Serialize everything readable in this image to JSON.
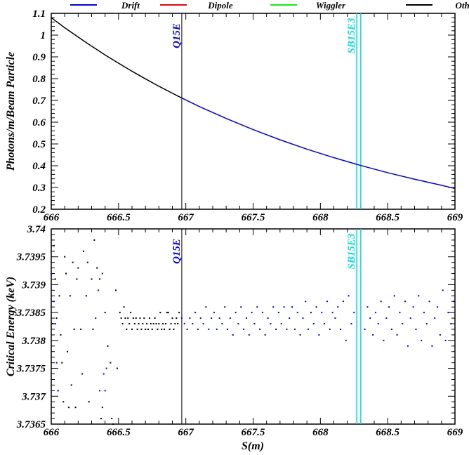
{
  "legend": [
    {
      "label": "Drift",
      "color": "#0000ff"
    },
    {
      "label": "Dipole",
      "color": "#ff0000"
    },
    {
      "label": "Wiggler",
      "color": "#00ff00"
    },
    {
      "label": "Other",
      "color": "#000000"
    }
  ],
  "chart_data": [
    {
      "type": "line",
      "title": "",
      "xlabel": "",
      "ylabel": "Photons/m/Beam Particle",
      "xlim": [
        666,
        669
      ],
      "ylim": [
        0.2,
        1.1
      ],
      "xticks": [
        "666",
        "666.5",
        "667",
        "667.5",
        "668",
        "668.5",
        "669"
      ],
      "yticks": [
        "0.2",
        "0.3",
        "0.4",
        "0.5",
        "0.6",
        "0.7",
        "0.8",
        "0.9",
        "1",
        "1.1"
      ],
      "markers": [
        {
          "label": "Q15E",
          "s": 666.97,
          "color": "#0000ff"
        },
        {
          "label": "SB15E3",
          "s": 668.27,
          "color": "#00e5e5"
        },
        {
          "label": "SB15E3",
          "s": 668.3,
          "color": "#00e5e5"
        }
      ],
      "series": [
        {
          "name": "Other",
          "color": "#000000",
          "x": [
            666.0,
            666.1,
            666.2,
            666.3,
            666.4,
            666.5,
            666.6,
            666.7,
            666.8,
            666.9,
            666.97
          ],
          "y": [
            1.08,
            1.034,
            0.991,
            0.949,
            0.909,
            0.871,
            0.834,
            0.799,
            0.765,
            0.733,
            0.711
          ]
        },
        {
          "name": "Drift",
          "color": "#0000ff",
          "x": [
            666.97,
            667.1,
            667.3,
            667.5,
            667.7,
            667.9,
            668.1,
            668.3,
            668.5,
            668.7,
            668.9,
            669.0
          ],
          "y": [
            0.711,
            0.672,
            0.617,
            0.566,
            0.519,
            0.476,
            0.437,
            0.401,
            0.368,
            0.338,
            0.31,
            0.295
          ]
        }
      ]
    },
    {
      "type": "scatter",
      "title": "",
      "xlabel": "S(m)",
      "ylabel": "Critical Energy (keV)",
      "xlim": [
        666,
        669
      ],
      "ylim": [
        3.7365,
        3.74
      ],
      "xticks": [
        "666",
        "666.5",
        "667",
        "667.5",
        "668",
        "668.5",
        "669"
      ],
      "yticks": [
        "3.7365",
        "3.737",
        "3.7375",
        "3.738",
        "3.7385",
        "3.739",
        "3.7395",
        "3.74"
      ],
      "markers": [
        {
          "label": "Q15E",
          "s": 666.97,
          "color": "#0000ff"
        },
        {
          "label": "SB15E3",
          "s": 668.27,
          "color": "#00e5e5"
        },
        {
          "label": "SB15E3",
          "s": 668.3,
          "color": "#00e5e5"
        }
      ],
      "series": [
        {
          "name": "Other",
          "color": "#000000",
          "points": [
            [
              666.01,
              3.7383
            ],
            [
              666.02,
              3.7397
            ],
            [
              666.03,
              3.7391
            ],
            [
              666.04,
              3.7384
            ],
            [
              666.05,
              3.7371
            ],
            [
              666.06,
              3.7388
            ],
            [
              666.07,
              3.7381
            ],
            [
              666.08,
              3.7376
            ],
            [
              666.09,
              3.7369
            ],
            [
              666.1,
              3.7395
            ],
            [
              666.11,
              3.7392
            ],
            [
              666.12,
              3.7378
            ],
            [
              666.13,
              3.7368
            ],
            [
              666.14,
              3.7388
            ],
            [
              666.15,
              3.7372
            ],
            [
              666.16,
              3.7394
            ],
            [
              666.17,
              3.7382
            ],
            [
              666.18,
              3.7368
            ],
            [
              666.19,
              3.7391
            ],
            [
              666.2,
              3.7393
            ],
            [
              666.22,
              3.7382
            ],
            [
              666.23,
              3.7374
            ],
            [
              666.24,
              3.7396
            ],
            [
              666.26,
              3.7388
            ],
            [
              666.27,
              3.7394
            ],
            [
              666.28,
              3.7369
            ],
            [
              666.3,
              3.7391
            ],
            [
              666.31,
              3.7382
            ],
            [
              666.32,
              3.7398
            ],
            [
              666.34,
              3.7393
            ],
            [
              666.36,
              3.7391
            ],
            [
              666.37,
              3.7366
            ],
            [
              666.38,
              3.7368
            ],
            [
              666.4,
              3.7385
            ],
            [
              666.42,
              3.7379
            ],
            [
              666.44,
              3.7376
            ],
            [
              666.45,
              3.7366
            ],
            [
              666.46,
              3.7365
            ],
            [
              666.48,
              3.7389
            ],
            [
              666.49,
              3.7375
            ],
            [
              666.51,
              3.7385
            ],
            [
              666.52,
              3.7384
            ],
            [
              666.53,
              3.7383
            ],
            [
              666.54,
              3.7386
            ],
            [
              666.55,
              3.7384
            ],
            [
              666.56,
              3.7382
            ],
            [
              666.57,
              3.7384
            ],
            [
              666.58,
              3.7383
            ],
            [
              666.59,
              3.7385
            ],
            [
              666.6,
              3.7382
            ],
            [
              666.61,
              3.7384
            ],
            [
              666.62,
              3.7383
            ],
            [
              666.63,
              3.7384
            ],
            [
              666.64,
              3.7382
            ],
            [
              666.65,
              3.7383
            ],
            [
              666.66,
              3.7384
            ],
            [
              666.67,
              3.7382
            ],
            [
              666.68,
              3.7383
            ],
            [
              666.69,
              3.7384
            ],
            [
              666.7,
              3.7382
            ],
            [
              666.71,
              3.7383
            ],
            [
              666.72,
              3.7382
            ],
            [
              666.73,
              3.7384
            ],
            [
              666.74,
              3.7383
            ],
            [
              666.75,
              3.7382
            ],
            [
              666.76,
              3.7383
            ],
            [
              666.77,
              3.7384
            ],
            [
              666.78,
              3.7383
            ],
            [
              666.79,
              3.7382
            ],
            [
              666.8,
              3.7383
            ],
            [
              666.81,
              3.7385
            ],
            [
              666.82,
              3.7382
            ],
            [
              666.83,
              3.7383
            ],
            [
              666.84,
              3.7382
            ],
            [
              666.85,
              3.7383
            ],
            [
              666.86,
              3.7385
            ],
            [
              666.87,
              3.7385
            ],
            [
              666.88,
              3.7382
            ],
            [
              666.89,
              3.7383
            ],
            [
              666.9,
              3.7384
            ],
            [
              666.91,
              3.7382
            ],
            [
              666.92,
              3.7383
            ],
            [
              666.93,
              3.7384
            ],
            [
              666.94,
              3.7383
            ],
            [
              666.95,
              3.7385
            ]
          ]
        },
        {
          "name": "Drift",
          "color": "#0000ff",
          "points": [
            [
              666.0,
              3.7392
            ],
            [
              666.02,
              3.7387
            ],
            [
              666.03,
              3.7383
            ],
            [
              666.04,
              3.7376
            ],
            [
              666.05,
              3.7371
            ],
            [
              666.33,
              3.7384
            ],
            [
              666.35,
              3.7389
            ],
            [
              666.36,
              3.7371
            ],
            [
              666.38,
              3.7392
            ],
            [
              666.39,
              3.7374
            ],
            [
              666.4,
              3.7371
            ],
            [
              666.41,
              3.7375
            ],
            [
              666.97,
              3.7384
            ],
            [
              666.99,
              3.7383
            ],
            [
              667.01,
              3.7382
            ],
            [
              667.03,
              3.7384
            ],
            [
              667.05,
              3.7383
            ],
            [
              667.07,
              3.7385
            ],
            [
              667.09,
              3.7382
            ],
            [
              667.11,
              3.7384
            ],
            [
              667.13,
              3.7383
            ],
            [
              667.15,
              3.7386
            ],
            [
              667.17,
              3.7382
            ],
            [
              667.19,
              3.7384
            ],
            [
              667.21,
              3.7385
            ],
            [
              667.23,
              3.7382
            ],
            [
              667.25,
              3.7384
            ],
            [
              667.27,
              3.7383
            ],
            [
              667.29,
              3.7386
            ],
            [
              667.31,
              3.7382
            ],
            [
              667.33,
              3.7384
            ],
            [
              667.35,
              3.7381
            ],
            [
              667.37,
              3.7385
            ],
            [
              667.39,
              3.7383
            ],
            [
              667.41,
              3.7386
            ],
            [
              667.43,
              3.7382
            ],
            [
              667.45,
              3.7384
            ],
            [
              667.47,
              3.7381
            ],
            [
              667.49,
              3.7385
            ],
            [
              667.51,
              3.7383
            ],
            [
              667.53,
              3.7386
            ],
            [
              667.55,
              3.7382
            ],
            [
              667.57,
              3.7385
            ],
            [
              667.59,
              3.7381
            ],
            [
              667.61,
              3.7384
            ],
            [
              667.63,
              3.7383
            ],
            [
              667.65,
              3.7386
            ],
            [
              667.67,
              3.7382
            ],
            [
              667.69,
              3.7385
            ],
            [
              667.71,
              3.7383
            ],
            [
              667.73,
              3.7386
            ],
            [
              667.75,
              3.7382
            ],
            [
              667.77,
              3.7384
            ],
            [
              667.79,
              3.7386
            ],
            [
              667.81,
              3.7382
            ],
            [
              667.83,
              3.7385
            ],
            [
              667.85,
              3.7381
            ],
            [
              667.87,
              3.7384
            ],
            [
              667.89,
              3.7387
            ],
            [
              667.91,
              3.7382
            ],
            [
              667.93,
              3.7385
            ],
            [
              667.95,
              3.7383
            ],
            [
              667.97,
              3.7386
            ],
            [
              667.99,
              3.7381
            ],
            [
              668.01,
              3.7385
            ],
            [
              668.03,
              3.7383
            ],
            [
              668.05,
              3.7387
            ],
            [
              668.07,
              3.7382
            ],
            [
              668.09,
              3.7385
            ],
            [
              668.11,
              3.7384
            ],
            [
              668.13,
              3.7386
            ],
            [
              668.15,
              3.7382
            ],
            [
              668.17,
              3.7387
            ],
            [
              668.19,
              3.738
            ],
            [
              668.21,
              3.7388
            ],
            [
              668.23,
              3.7383
            ],
            [
              668.25,
              3.7385
            ],
            [
              668.33,
              3.7382
            ],
            [
              668.35,
              3.7386
            ],
            [
              668.37,
              3.7384
            ],
            [
              668.39,
              3.7381
            ],
            [
              668.41,
              3.7385
            ],
            [
              668.43,
              3.7383
            ],
            [
              668.45,
              3.7387
            ],
            [
              668.47,
              3.738
            ],
            [
              668.49,
              3.7384
            ],
            [
              668.51,
              3.7386
            ],
            [
              668.53,
              3.7382
            ],
            [
              668.55,
              3.7388
            ],
            [
              668.57,
              3.7381
            ],
            [
              668.59,
              3.7385
            ],
            [
              668.61,
              3.7383
            ],
            [
              668.63,
              3.7387
            ],
            [
              668.65,
              3.7379
            ],
            [
              668.67,
              3.7384
            ],
            [
              668.69,
              3.7386
            ],
            [
              668.71,
              3.7382
            ],
            [
              668.73,
              3.7388
            ],
            [
              668.75,
              3.738
            ],
            [
              668.77,
              3.7385
            ],
            [
              668.79,
              3.7383
            ],
            [
              668.81,
              3.7387
            ],
            [
              668.83,
              3.7379
            ],
            [
              668.85,
              3.7384
            ],
            [
              668.87,
              3.7386
            ],
            [
              668.89,
              3.7381
            ],
            [
              668.91,
              3.7389
            ],
            [
              668.93,
              3.738
            ],
            [
              668.95,
              3.7385
            ],
            [
              668.97,
              3.7383
            ],
            [
              668.99,
              3.7387
            ]
          ]
        }
      ]
    }
  ]
}
